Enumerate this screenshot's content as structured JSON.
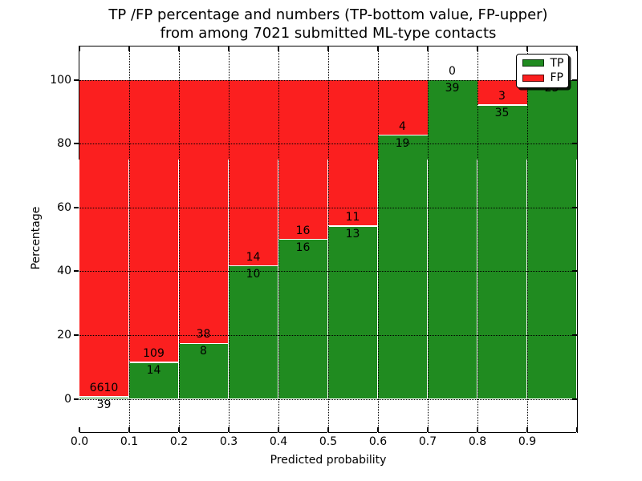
{
  "title": {
    "line1": "TP /FP percentage and numbers (TP-bottom value, FP-upper)",
    "line2": "from among 7021 submitted ML-type contacts"
  },
  "axes": {
    "xlabel": "Predicted probability",
    "ylabel": "Percentage",
    "x_tick_labels": [
      "0.0",
      "0.1",
      "0.2",
      "0.3",
      "0.4",
      "0.5",
      "0.6",
      "0.7",
      "0.8",
      "0.9"
    ],
    "y_tick_labels": [
      "0",
      "20",
      "40",
      "60",
      "80",
      "100"
    ],
    "y_tick_values": [
      0,
      20,
      40,
      60,
      80,
      100
    ],
    "xlim": [
      0.0,
      1.0
    ],
    "ylim": [
      -10.3,
      110.6
    ],
    "grid": "dotted"
  },
  "legend": {
    "position": "upper-right",
    "entries": [
      {
        "label": "TP",
        "color": "#208b20"
      },
      {
        "label": "FP",
        "color": "#fb1f1f"
      }
    ]
  },
  "colors": {
    "tp": "#208b20",
    "fp": "#fb1f1f",
    "bar_edge": "#ffffff",
    "grid": "#000000",
    "text": "#000000",
    "background": "#ffffff"
  },
  "chart_data": {
    "type": "bar",
    "stacked": true,
    "normalized_to_percent": true,
    "title": "TP /FP percentage and numbers (TP-bottom value, FP-upper) from among 7021 submitted ML-type contacts",
    "xlabel": "Predicted probability",
    "ylabel": "Percentage",
    "total_contacts": 7021,
    "bin_width": 0.1,
    "bin_starts": [
      0.0,
      0.1,
      0.2,
      0.3,
      0.4,
      0.5,
      0.6,
      0.7,
      0.8,
      0.9
    ],
    "series": [
      {
        "name": "TP",
        "color": "#208b20",
        "counts": [
          39,
          14,
          8,
          10,
          16,
          13,
          19,
          39,
          35,
          23
        ]
      },
      {
        "name": "FP",
        "color": "#fb1f1f",
        "counts": [
          6610,
          109,
          38,
          14,
          16,
          11,
          4,
          0,
          3,
          0
        ]
      }
    ],
    "tp_percent_of_bin": [
      0.59,
      11.38,
      17.39,
      41.67,
      50.0,
      54.17,
      82.61,
      100.0,
      92.11,
      100.0
    ],
    "xlim": [
      0.0,
      1.0
    ],
    "ylim": [
      -10.3,
      110.6
    ],
    "legend_position": "upper-right",
    "grid": "dotted"
  }
}
